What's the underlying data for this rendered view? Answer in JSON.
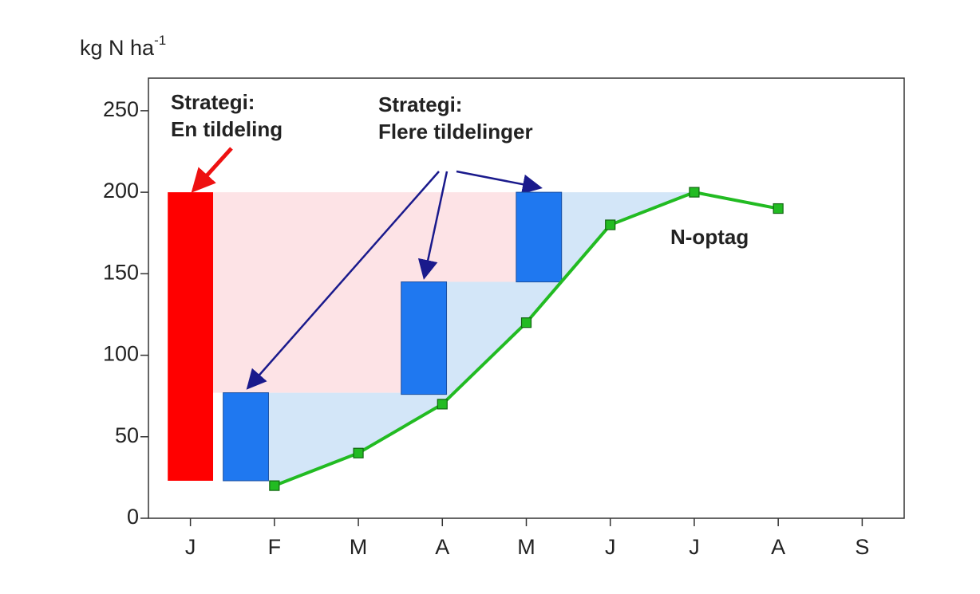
{
  "chart_data": {
    "type": "line",
    "y_label": "kg N ha",
    "y_label_sup": "-1",
    "categories": [
      "J",
      "F",
      "M",
      "A",
      "M",
      "J",
      "J",
      "A",
      "S"
    ],
    "ylim": [
      0,
      270
    ],
    "yticks": [
      0,
      50,
      100,
      150,
      200,
      250
    ],
    "series": [
      {
        "name": "N-optag",
        "color": "#22bb22",
        "values": [
          null,
          20,
          40,
          70,
          120,
          180,
          200,
          190,
          null
        ]
      }
    ],
    "bars": [
      {
        "x": 0,
        "low": 23,
        "high": 200,
        "color": "#ff0000"
      },
      {
        "x": 0.66,
        "low": 23,
        "high": 77,
        "color": "#1f78f0"
      },
      {
        "x": 2.78,
        "low": 76,
        "high": 145,
        "color": "#1f78f0"
      },
      {
        "x": 4.15,
        "low": 145,
        "high": 200,
        "color": "#1f78f0"
      }
    ],
    "annotations": [
      {
        "lines": [
          "Strategi:",
          "En tildeling"
        ],
        "color": "#ee1111"
      },
      {
        "lines": [
          "Strategi:",
          "Flere tildelinger"
        ],
        "color": "#2a86e6"
      }
    ]
  }
}
